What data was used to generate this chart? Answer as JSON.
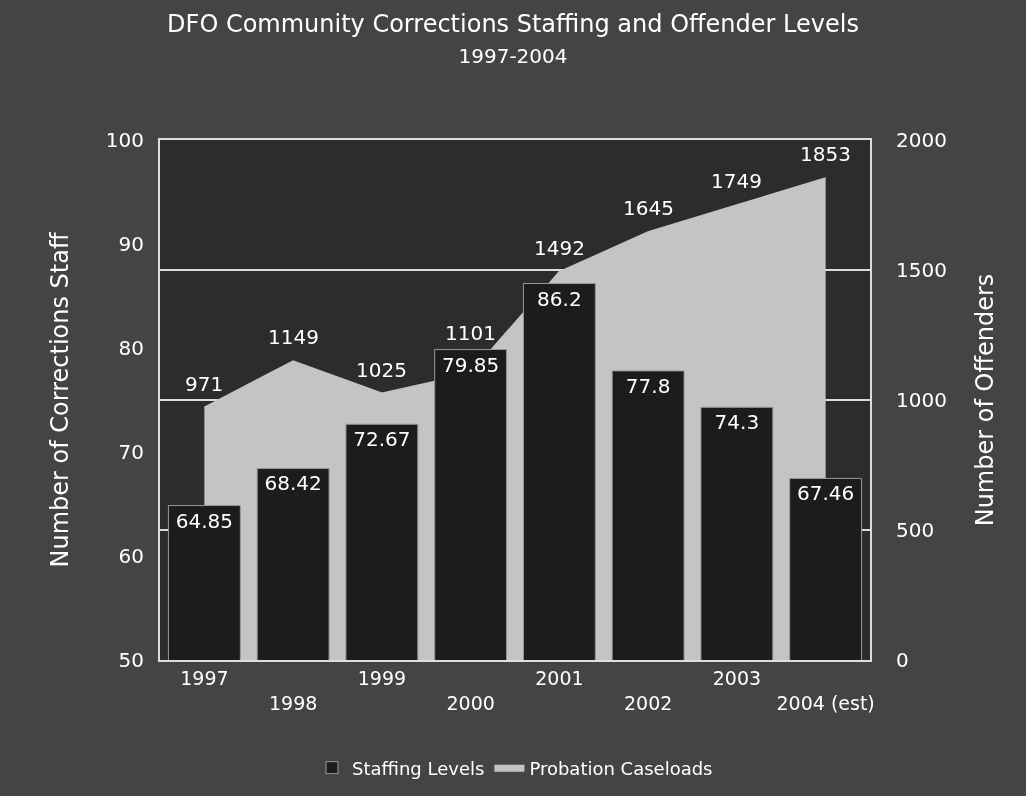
{
  "chart_data": {
    "type": "bar",
    "title": "DFO Community Corrections Staffing and Offender Levels",
    "subtitle": "1997-2004",
    "ylabel": "Number of Corrections Staff",
    "y2label": "Number of Offenders",
    "categories": [
      "1997",
      "1998",
      "1999",
      "2000",
      "2001",
      "2002",
      "2003",
      "2004 (est)"
    ],
    "series": [
      {
        "name": "Staffing Levels",
        "color": "#1c1c1c",
        "values": [
          64.85,
          68.42,
          72.67,
          79.85,
          86.2,
          77.8,
          74.3,
          67.46
        ]
      },
      {
        "name": "Probation Caseloads",
        "type": "area",
        "axis": "y2",
        "color": "#c4c4c4",
        "values": [
          971,
          1149,
          1025,
          1101,
          1492,
          1645,
          1749,
          1853
        ]
      }
    ],
    "ylim": [
      50,
      100
    ],
    "yticks": [
      50,
      60,
      70,
      80,
      90,
      100
    ],
    "y2lim": [
      0,
      2000
    ],
    "y2ticks": [
      0,
      500,
      1000,
      1500,
      2000
    ],
    "grid": "y",
    "legend": "bottom",
    "data_labels": true
  }
}
